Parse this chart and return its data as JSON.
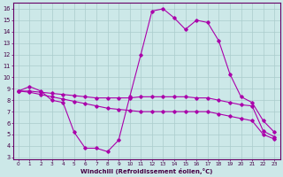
{
  "background_color": "#cce8e8",
  "grid_color": "#aacccc",
  "line_color": "#aa00aa",
  "xlabel": "Windchill (Refroidissement éolien,°C)",
  "xlim_min": -0.5,
  "xlim_max": 23.5,
  "ylim_min": 2.8,
  "ylim_max": 16.5,
  "yticks": [
    3,
    4,
    5,
    6,
    7,
    8,
    9,
    10,
    11,
    12,
    13,
    14,
    15,
    16
  ],
  "xticks": [
    0,
    1,
    2,
    3,
    4,
    5,
    6,
    7,
    8,
    9,
    10,
    11,
    12,
    13,
    14,
    15,
    16,
    17,
    18,
    19,
    20,
    21,
    22,
    23
  ],
  "line1_x": [
    0,
    1,
    2,
    3,
    4,
    5,
    6,
    7,
    8,
    9,
    10,
    11,
    12,
    13,
    14,
    15,
    16,
    17,
    18,
    19,
    20,
    21,
    22,
    23
  ],
  "line1_y": [
    8.8,
    9.2,
    8.8,
    8.0,
    7.8,
    5.2,
    3.8,
    3.8,
    3.5,
    4.5,
    8.3,
    12.0,
    15.8,
    16.0,
    15.2,
    14.2,
    15.0,
    14.8,
    13.2,
    10.3,
    8.3,
    7.8,
    6.2,
    5.2
  ],
  "line2_x": [
    0,
    1,
    2,
    3,
    4,
    5,
    6,
    7,
    8,
    9,
    10,
    11,
    12,
    13,
    14,
    15,
    16,
    17,
    18,
    19,
    20,
    21,
    22,
    23
  ],
  "line2_y": [
    8.8,
    8.8,
    8.7,
    8.6,
    8.5,
    8.4,
    8.3,
    8.2,
    8.2,
    8.2,
    8.2,
    8.3,
    8.3,
    8.3,
    8.3,
    8.3,
    8.2,
    8.2,
    8.0,
    7.8,
    7.6,
    7.5,
    5.3,
    4.8
  ],
  "line3_x": [
    0,
    1,
    2,
    3,
    4,
    5,
    6,
    7,
    8,
    9,
    10,
    11,
    12,
    13,
    14,
    15,
    16,
    17,
    18,
    19,
    20,
    21,
    22,
    23
  ],
  "line3_y": [
    8.8,
    8.7,
    8.5,
    8.3,
    8.1,
    7.9,
    7.7,
    7.5,
    7.3,
    7.2,
    7.1,
    7.0,
    7.0,
    7.0,
    7.0,
    7.0,
    7.0,
    7.0,
    6.8,
    6.6,
    6.4,
    6.2,
    5.0,
    4.6
  ]
}
